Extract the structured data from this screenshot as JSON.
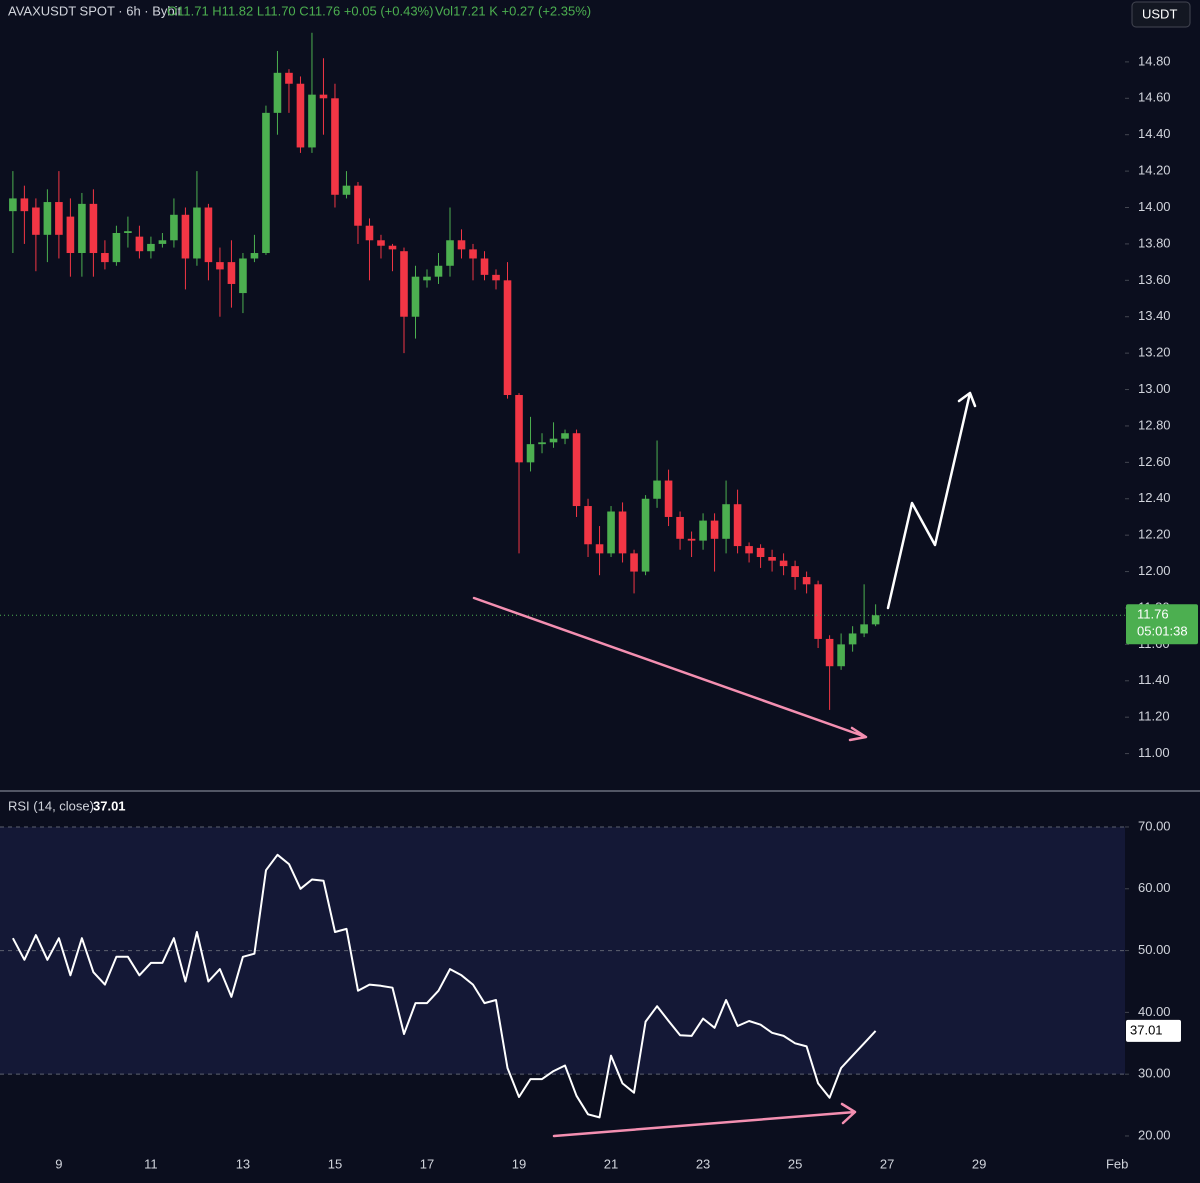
{
  "chart_data": [
    {
      "type": "candlestick",
      "symbol": "AVAXUSDT SPOT · 6h · Bybit",
      "ohlc_text": "O11.71 H11.82 L11.70 C11.76 +0.05 (+0.43%)",
      "volume_text": "Vol17.21 K +0.27 (+2.35%)",
      "currency": "USDT",
      "countdown": "05:01:38",
      "up_color": "#4caf50",
      "down_color": "#f23645",
      "xlim": [
        7.72,
        32.17
      ],
      "ylim": [
        10.8,
        15.14
      ],
      "yticks": [
        {
          "value": 11.0,
          "label": "11.00"
        },
        {
          "value": 11.2,
          "label": "11.20"
        },
        {
          "value": 11.4,
          "label": "11.40"
        },
        {
          "value": 11.6,
          "label": "11.60"
        },
        {
          "value": 11.8,
          "label": "11.80"
        },
        {
          "value": 12.0,
          "label": "12.00"
        },
        {
          "value": 12.2,
          "label": "12.20"
        },
        {
          "value": 12.4,
          "label": "12.40"
        },
        {
          "value": 12.6,
          "label": "12.60"
        },
        {
          "value": 12.8,
          "label": "12.80"
        },
        {
          "value": 13.0,
          "label": "13.00"
        },
        {
          "value": 13.2,
          "label": "13.20"
        },
        {
          "value": 13.4,
          "label": "13.40"
        },
        {
          "value": 13.6,
          "label": "13.60"
        },
        {
          "value": 13.8,
          "label": "13.80"
        },
        {
          "value": 14.0,
          "label": "14.00"
        },
        {
          "value": 14.2,
          "label": "14.20"
        },
        {
          "value": 14.4,
          "label": "14.40"
        },
        {
          "value": 14.6,
          "label": "14.60"
        },
        {
          "value": 14.8,
          "label": "14.80"
        }
      ],
      "x": [
        8,
        8.25,
        8.5,
        8.75,
        9,
        9.25,
        9.5,
        9.75,
        10,
        10.25,
        10.5,
        10.75,
        11,
        11.25,
        11.5,
        11.75,
        12,
        12.25,
        12.5,
        12.75,
        13,
        13.25,
        13.5,
        13.75,
        14,
        14.25,
        14.5,
        14.75,
        15,
        15.25,
        15.5,
        15.75,
        16,
        16.25,
        16.5,
        16.75,
        17,
        17.25,
        17.5,
        17.75,
        18,
        18.25,
        18.5,
        18.75,
        19,
        19.25,
        19.5,
        19.75,
        20,
        20.25,
        20.5,
        20.75,
        21,
        21.25,
        21.5,
        21.75,
        22,
        22.25,
        22.5,
        22.75,
        23,
        23.25,
        23.5,
        23.75,
        24,
        24.25,
        24.5,
        24.75,
        25,
        25.25,
        25.5,
        25.75,
        26,
        26.25,
        26.5,
        26.75
      ],
      "series": [
        {
          "name": "AVAXUSDT",
          "open": [
            13.98,
            14.05,
            14.0,
            13.85,
            14.03,
            13.95,
            13.75,
            14.02,
            13.75,
            13.7,
            13.86,
            13.84,
            13.76,
            13.8,
            13.82,
            13.96,
            13.72,
            14.0,
            13.7,
            13.7,
            13.53,
            13.72,
            13.75,
            14.52,
            14.74,
            14.68,
            14.33,
            14.62,
            14.6,
            14.07,
            14.12,
            13.9,
            13.82,
            13.79,
            13.76,
            13.4,
            13.6,
            13.62,
            13.68,
            13.82,
            13.77,
            13.72,
            13.63,
            13.6,
            12.97,
            12.6,
            12.7,
            12.71,
            12.73,
            12.76,
            12.36,
            12.15,
            12.1,
            12.33,
            12.1,
            12.0,
            12.4,
            12.5,
            12.3,
            12.18,
            12.17,
            12.28,
            12.18,
            12.37,
            12.14,
            12.13,
            12.08,
            12.06,
            12.03,
            11.97,
            11.93,
            11.63,
            11.48,
            11.6,
            11.66,
            11.71
          ],
          "high": [
            14.2,
            14.12,
            14.05,
            14.1,
            14.2,
            14.05,
            14.08,
            14.1,
            13.82,
            13.9,
            13.95,
            13.9,
            13.84,
            13.86,
            14.05,
            14.0,
            14.2,
            14.02,
            13.78,
            13.82,
            13.75,
            13.85,
            14.56,
            14.86,
            14.76,
            14.72,
            14.96,
            14.82,
            14.68,
            14.2,
            14.14,
            13.94,
            13.85,
            13.8,
            13.78,
            13.68,
            13.66,
            13.75,
            14.0,
            13.88,
            13.8,
            13.76,
            13.66,
            13.7,
            12.98,
            12.85,
            12.76,
            12.82,
            12.78,
            12.78,
            12.4,
            12.25,
            12.36,
            12.38,
            12.12,
            12.42,
            12.72,
            12.56,
            12.33,
            12.22,
            12.32,
            12.32,
            12.5,
            12.45,
            12.16,
            12.15,
            12.12,
            12.1,
            12.06,
            12.0,
            11.95,
            11.65,
            11.66,
            11.7,
            11.93,
            11.82
          ],
          "low": [
            13.75,
            13.8,
            13.65,
            13.7,
            13.72,
            13.62,
            13.62,
            13.62,
            13.66,
            13.68,
            13.78,
            13.72,
            13.72,
            13.78,
            13.78,
            13.55,
            13.68,
            13.6,
            13.4,
            13.45,
            13.42,
            13.7,
            13.74,
            14.4,
            14.52,
            14.3,
            14.3,
            14.4,
            14.0,
            14.05,
            13.8,
            13.6,
            13.72,
            13.65,
            13.2,
            13.28,
            13.56,
            13.58,
            13.62,
            13.72,
            13.6,
            13.6,
            13.55,
            12.95,
            12.1,
            12.55,
            12.65,
            12.68,
            12.7,
            12.3,
            12.08,
            11.98,
            12.08,
            12.05,
            11.88,
            11.98,
            12.35,
            12.25,
            12.12,
            12.08,
            12.12,
            12.0,
            12.1,
            12.1,
            12.05,
            12.02,
            12.0,
            11.98,
            11.9,
            11.88,
            11.58,
            11.24,
            11.46,
            11.56,
            11.64,
            11.7
          ],
          "close": [
            14.05,
            13.98,
            13.85,
            14.03,
            13.85,
            13.75,
            14.02,
            13.75,
            13.7,
            13.86,
            13.87,
            13.76,
            13.8,
            13.82,
            13.96,
            13.72,
            14.0,
            13.7,
            13.66,
            13.58,
            13.72,
            13.75,
            14.52,
            14.74,
            14.68,
            14.33,
            14.62,
            14.6,
            14.07,
            14.12,
            13.9,
            13.82,
            13.79,
            13.77,
            13.4,
            13.62,
            13.62,
            13.68,
            13.82,
            13.77,
            13.72,
            13.63,
            13.6,
            12.97,
            12.6,
            12.7,
            12.71,
            12.73,
            12.76,
            12.36,
            12.15,
            12.1,
            12.33,
            12.1,
            12.0,
            12.4,
            12.5,
            12.3,
            12.18,
            12.17,
            12.28,
            12.18,
            12.37,
            12.14,
            12.1,
            12.08,
            12.06,
            12.03,
            11.97,
            11.93,
            11.63,
            11.48,
            11.6,
            11.66,
            11.71,
            11.76
          ]
        }
      ]
    },
    {
      "type": "line",
      "title": "RSI (14, close)",
      "color": "#ffffff",
      "band": [
        30,
        70
      ],
      "band_color": "#141836",
      "levels": [
        30,
        50,
        70
      ],
      "xlim": [
        7.72,
        32.17
      ],
      "xticks": [
        9,
        11,
        13,
        15,
        17,
        19,
        21,
        23,
        25,
        27,
        29,
        {
          "value": 32,
          "label": "Feb"
        }
      ],
      "ylim": [
        17.73,
        75.66
      ],
      "yticks": [
        {
          "value": 20,
          "label": "20.00"
        },
        {
          "value": 30,
          "label": "30.00"
        },
        {
          "value": 40,
          "label": "40.00"
        },
        {
          "value": 50,
          "label": "50.00"
        },
        {
          "value": 60,
          "label": "60.00"
        },
        {
          "value": 70,
          "label": "70.00"
        }
      ],
      "x": [
        8,
        8.25,
        8.5,
        8.75,
        9,
        9.25,
        9.5,
        9.75,
        10,
        10.25,
        10.5,
        10.75,
        11,
        11.25,
        11.5,
        11.75,
        12,
        12.25,
        12.5,
        12.75,
        13,
        13.25,
        13.5,
        13.75,
        14,
        14.25,
        14.5,
        14.75,
        15,
        15.25,
        15.5,
        15.75,
        16,
        16.25,
        16.5,
        16.75,
        17,
        17.25,
        17.5,
        17.75,
        18,
        18.25,
        18.5,
        18.75,
        19,
        19.25,
        19.5,
        19.75,
        20,
        20.25,
        20.5,
        20.75,
        21,
        21.25,
        21.5,
        21.75,
        22,
        22.25,
        22.5,
        22.75,
        23,
        23.25,
        23.5,
        23.75,
        24,
        24.25,
        24.5,
        24.75,
        25,
        25.25,
        25.5,
        25.75,
        26,
        26.25,
        26.5,
        26.75
      ],
      "values": [
        52,
        48.5,
        52.5,
        48.5,
        52,
        46,
        52,
        46.5,
        44.5,
        49,
        49,
        46,
        48,
        48,
        52,
        45,
        53,
        45,
        47,
        42.5,
        49,
        49.5,
        63,
        65.5,
        64,
        60,
        61.5,
        61.3,
        53,
        53.5,
        43.5,
        44.5,
        44.3,
        44,
        36.5,
        41.5,
        41.5,
        43.5,
        47,
        46,
        44.5,
        41.5,
        42,
        31,
        26.3,
        29.2,
        29.2,
        30.5,
        31.4,
        26.5,
        23.5,
        23,
        33,
        28.5,
        27,
        38.5,
        41,
        38.6,
        36.3,
        36.2,
        39,
        37.5,
        42,
        37.8,
        38.6,
        38,
        36.7,
        36.2,
        35,
        34.5,
        28.5,
        26.2,
        31,
        33,
        35,
        37.01
      ]
    }
  ]
}
